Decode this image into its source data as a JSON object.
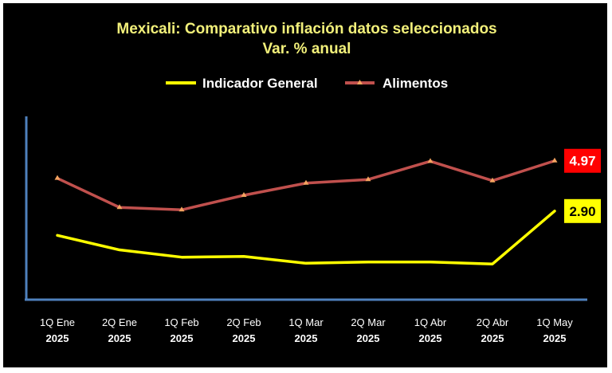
{
  "chart_data": {
    "type": "line",
    "title": "Mexicali: Comparativo inflación datos seleccionados",
    "subtitle": "Var. % anual",
    "categories": [
      [
        "1Q Ene",
        "2025"
      ],
      [
        "2Q Ene",
        "2025"
      ],
      [
        "1Q Feb",
        "2025"
      ],
      [
        "2Q Feb",
        "2025"
      ],
      [
        "1Q Mar",
        "2025"
      ],
      [
        "2Q Mar",
        "2025"
      ],
      [
        "1Q Abr",
        "2025"
      ],
      [
        "2Q Abr",
        "2025"
      ],
      [
        "1Q May",
        "2025"
      ]
    ],
    "series": [
      {
        "name": "Indicador General",
        "color": "#ffff00",
        "marker": "none",
        "values": [
          1.9,
          1.3,
          1.0,
          1.03,
          0.75,
          0.8,
          0.8,
          0.72,
          2.9
        ]
      },
      {
        "name": "Alimentos",
        "color": "#c0504d",
        "marker": "triangle",
        "values": [
          4.25,
          3.05,
          2.95,
          3.55,
          4.05,
          4.2,
          4.95,
          4.15,
          4.97
        ]
      }
    ],
    "end_labels": [
      {
        "series": "Alimentos",
        "text": "4.97",
        "bg": "#ff0000",
        "fg": "#ffffff"
      },
      {
        "series": "Indicador General",
        "text": "2.90",
        "bg": "#ffff00",
        "fg": "#000000"
      }
    ],
    "ylim": [
      -0.75,
      6.8
    ],
    "grid": false,
    "legend": "top",
    "background": "#000000"
  }
}
